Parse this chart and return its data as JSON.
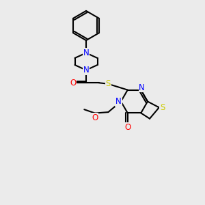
{
  "background_color": "#ebebeb",
  "bond_color": "#000000",
  "line_width": 1.5,
  "atom_colors": {
    "N": "#0000ff",
    "O": "#ff0000",
    "S": "#cccc00"
  },
  "font_size": 8.5,
  "fig_size": [
    3.0,
    3.0
  ],
  "dpi": 100
}
